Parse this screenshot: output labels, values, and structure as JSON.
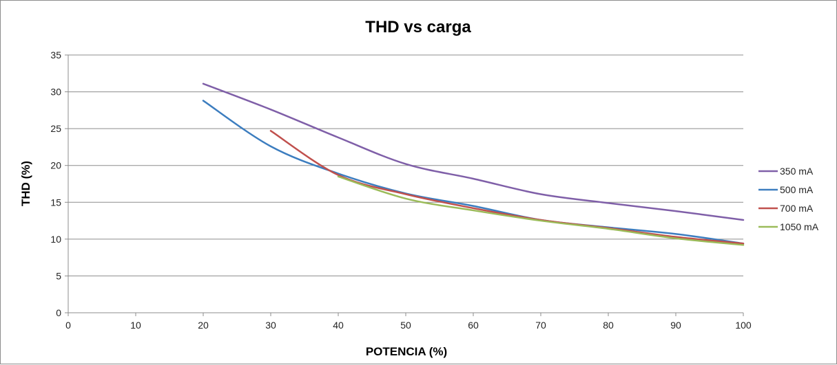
{
  "chart_data": {
    "type": "line",
    "title": "THD vs carga",
    "xlabel": "POTENCIA (%)",
    "ylabel": "THD (%)",
    "xlim": [
      0,
      100
    ],
    "ylim": [
      0,
      35
    ],
    "xticks": [
      "0",
      "10",
      "20",
      "30",
      "40",
      "50",
      "60",
      "70",
      "80",
      "90",
      "100"
    ],
    "yticks": [
      "0",
      "5",
      "10",
      "15",
      "20",
      "25",
      "30",
      "35"
    ],
    "grid": true,
    "legend_position": "right",
    "series": [
      {
        "name": "350 mA",
        "color": "#7f5fa8",
        "x": [
          20,
          30,
          40,
          50,
          60,
          70,
          80,
          90,
          100
        ],
        "y": [
          31.1,
          27.6,
          23.8,
          20.2,
          18.2,
          16.1,
          14.9,
          13.8,
          12.6
        ]
      },
      {
        "name": "500 mA",
        "color": "#3c7dbf",
        "x": [
          20,
          30,
          40,
          50,
          60,
          70,
          80,
          90,
          100
        ],
        "y": [
          28.8,
          22.6,
          18.9,
          16.2,
          14.5,
          12.6,
          11.6,
          10.7,
          9.4
        ]
      },
      {
        "name": "700 mA",
        "color": "#c0504d",
        "x": [
          30,
          40,
          50,
          60,
          70,
          80,
          90,
          100
        ],
        "y": [
          24.7,
          18.7,
          16.1,
          14.2,
          12.6,
          11.5,
          10.3,
          9.4
        ]
      },
      {
        "name": "1050 mA",
        "color": "#9bbb59",
        "x": [
          40,
          50,
          60,
          70,
          80,
          90,
          100
        ],
        "y": [
          18.5,
          15.5,
          13.9,
          12.5,
          11.4,
          10.1,
          9.2
        ]
      }
    ]
  }
}
